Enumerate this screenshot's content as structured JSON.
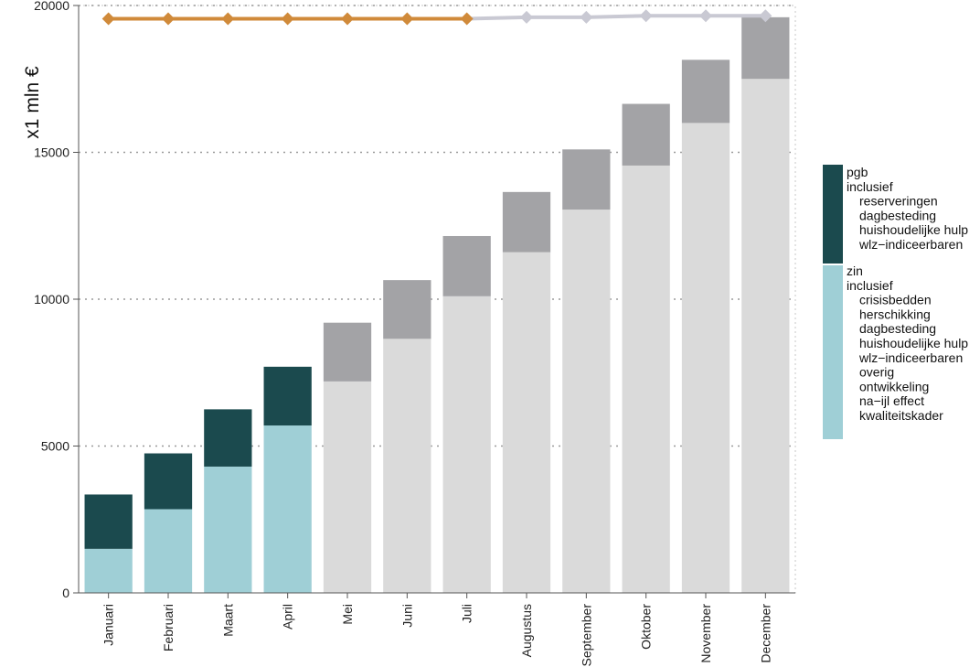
{
  "chart_data": {
    "type": "bar",
    "stacked": true,
    "ylabel": "x1 mln €",
    "ylim": [
      0,
      20000
    ],
    "yticks": [
      0,
      5000,
      10000,
      15000,
      20000
    ],
    "ytick_labels": [
      "0",
      "5000",
      "10000",
      "15000",
      "20000"
    ],
    "grid": "horizontal dotted",
    "legend_position": "right",
    "categories": [
      "Januari",
      "Februari",
      "Maart",
      "April",
      "Mei",
      "Juni",
      "Juli",
      "Augustus",
      "September",
      "Oktober",
      "November",
      "December"
    ],
    "realised_months": 4,
    "series": [
      {
        "key": "zin",
        "values": [
          1500,
          2850,
          4300,
          5700,
          7200,
          8650,
          10100,
          11600,
          13050,
          14550,
          16000,
          17500
        ]
      },
      {
        "key": "pgb",
        "values": [
          1850,
          1900,
          1950,
          2000,
          2000,
          2000,
          2050,
          2050,
          2050,
          2100,
          2150,
          2100
        ]
      }
    ],
    "budget_line": {
      "values": [
        19550,
        19550,
        19550,
        19550,
        19550,
        19550,
        19550,
        19600,
        19600,
        19650,
        19650,
        19650
      ],
      "solid_until_index": 6
    },
    "colors": {
      "zin": "#9fcfd6",
      "pgb": "#1b4a4e",
      "zin_forecast": "#dadada",
      "pgb_forecast": "#a3a3a6",
      "budget_line": "#d08a3a",
      "budget_line_forecast": "#c9c9d3"
    },
    "legend": [
      {
        "key": "pgb",
        "lines": [
          "pgb",
          "inclusief",
          "reserveringen",
          "dagbesteding",
          "huishoudelijke hulp",
          "wlz−indiceerbaren"
        ]
      },
      {
        "key": "zin",
        "lines": [
          "zin",
          "inclusief",
          "crisisbedden",
          "herschikking",
          "dagbesteding",
          "huishoudelijke hulp",
          "wlz−indiceerbaren",
          "overig",
          "ontwikkeling",
          "na−ijl effect",
          "kwaliteitskader"
        ]
      }
    ]
  }
}
